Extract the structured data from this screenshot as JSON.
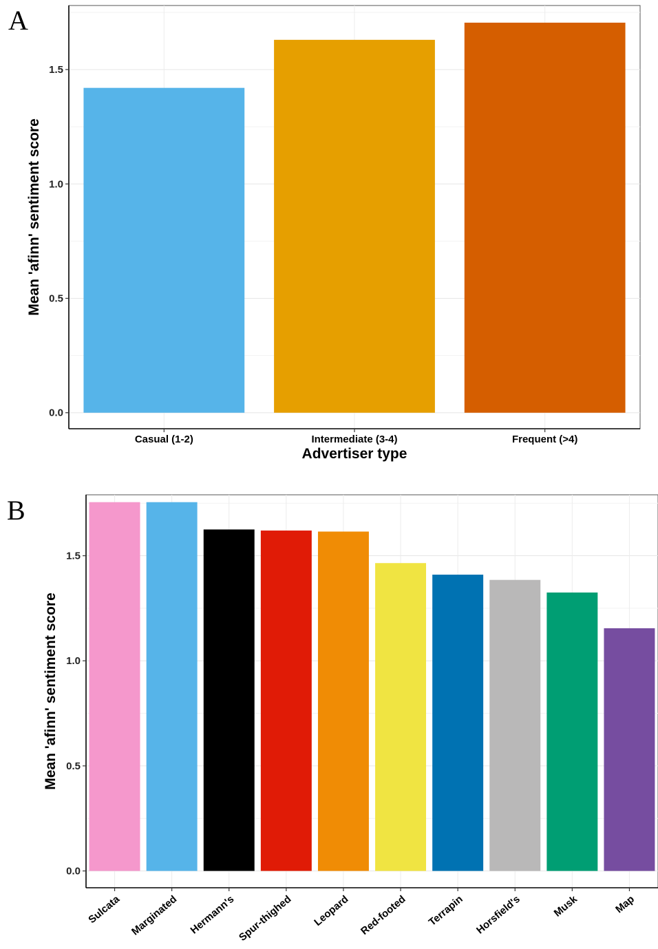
{
  "panels": {
    "a_letter": "A",
    "b_letter": "B"
  },
  "chart_data": [
    {
      "type": "bar",
      "title": "",
      "xlabel": "Advertiser type",
      "ylabel": "Mean 'afinn' sentiment score",
      "categories": [
        "Casual (1-2)",
        "Intermediate (3-4)",
        "Frequent (>4)"
      ],
      "values": [
        1.42,
        1.63,
        1.705
      ],
      "colors": [
        "#56b4e9",
        "#e69f00",
        "#d55e00"
      ],
      "ylim": [
        -0.07,
        1.78
      ],
      "yticks": [
        0.0,
        0.5,
        1.0,
        1.5
      ],
      "ytick_labels": [
        "0.0",
        "0.5",
        "1.0",
        "1.5"
      ],
      "grid": true
    },
    {
      "type": "bar",
      "title": "",
      "xlabel": "",
      "ylabel": "Mean 'afinn' sentiment score",
      "categories": [
        "Sulcata",
        "Marginated",
        "Hermann's",
        "Spur-thighed",
        "Leopard",
        "Red-footed",
        "Terrapin",
        "Horsfield's",
        "Musk",
        "Map"
      ],
      "values": [
        1.755,
        1.755,
        1.625,
        1.62,
        1.615,
        1.465,
        1.41,
        1.385,
        1.325,
        1.155
      ],
      "colors": [
        "#f598cc",
        "#56b4e9",
        "#000000",
        "#e01b06",
        "#f08c05",
        "#f0e442",
        "#0072b2",
        "#b9b8b8",
        "#009e73",
        "#764da0"
      ],
      "ylim": [
        -0.08,
        1.79
      ],
      "yticks": [
        0.0,
        0.5,
        1.0,
        1.5
      ],
      "ytick_labels": [
        "0.0",
        "0.5",
        "1.0",
        "1.5"
      ],
      "grid": true
    }
  ]
}
